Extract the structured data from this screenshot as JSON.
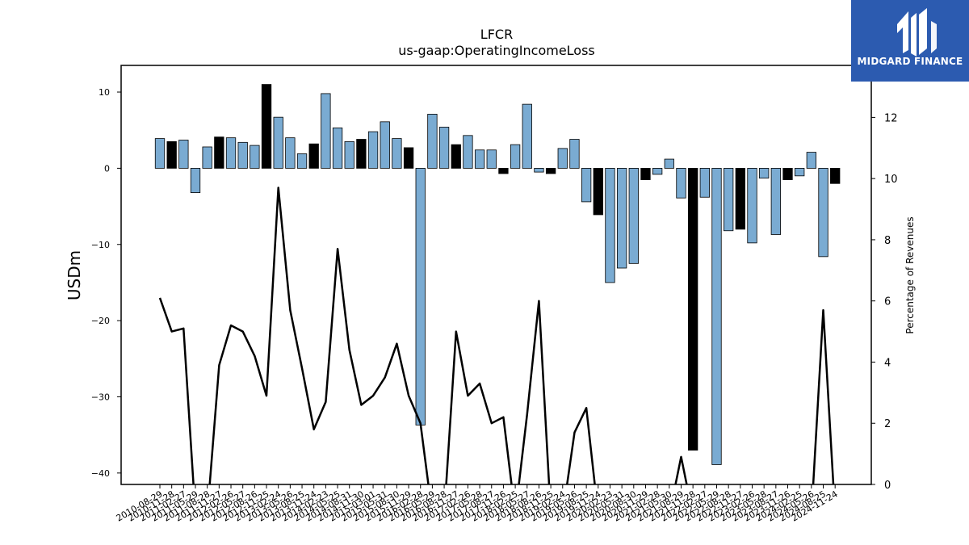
{
  "brand": {
    "name": "MIDGARD FINANCE",
    "bg": "#2c5bb0"
  },
  "chart_data": {
    "type": "bar",
    "title": "LFCR",
    "subtitle": "us-gaap:OperatingIncomeLoss",
    "ylabel": "USDm",
    "y2label": "Percentage of Revenues",
    "ylim": [
      -41.5,
      13.5
    ],
    "y_ticks": [
      10,
      0,
      -10,
      -20,
      -30,
      -40
    ],
    "y2lim": [
      0,
      13.7
    ],
    "y2_ticks": [
      0,
      2,
      4,
      6,
      8,
      10,
      12
    ],
    "colors": {
      "bar_default": "#7aabd2",
      "bar_highlight": "#000000",
      "line": "#000000"
    },
    "categories": [
      "2010-08-29",
      "2010-11-28",
      "2011-02-27",
      "2011-05-29",
      "2011-08-28",
      "2011-11-27",
      "2012-02-26",
      "2012-05-27",
      "2012-08-26",
      "2012-11-25",
      "2013-02-24",
      "2013-05-26",
      "2013-08-25",
      "2013-11-24",
      "2014-02-23",
      "2014-05-25",
      "2014-08-31",
      "2014-11-30",
      "2015-03-01",
      "2015-05-31",
      "2015-08-30",
      "2015-11-29",
      "2016-02-28",
      "2016-05-29",
      "2016-08-28",
      "2016-11-27",
      "2017-02-26",
      "2017-05-28",
      "2017-08-27",
      "2017-11-26",
      "2018-02-25",
      "2018-05-27",
      "2018-08-26",
      "2018-11-25",
      "2019-02-24",
      "2019-05-26",
      "2019-08-25",
      "2019-11-24",
      "2020-02-23",
      "2020-05-31",
      "2020-08-30",
      "2020-11-29",
      "2021-02-28",
      "2021-05-30",
      "2021-08-29",
      "2021-11-28",
      "2022-02-27",
      "2022-05-29",
      "2022-08-28",
      "2022-11-27",
      "2023-02-26",
      "2023-05-28",
      "2023-08-27",
      "2023-11-26",
      "2024-02-25",
      "2024-05-26",
      "2024-08-25",
      "2024-11-24"
    ],
    "values": [
      3.9,
      3.5,
      3.7,
      -3.2,
      2.8,
      4.1,
      4.0,
      3.4,
      3.0,
      11.0,
      6.7,
      4.0,
      1.9,
      3.2,
      9.8,
      5.3,
      3.5,
      3.8,
      4.8,
      6.1,
      3.9,
      2.7,
      -33.7,
      7.1,
      5.4,
      3.1,
      4.3,
      2.4,
      2.4,
      -0.7,
      3.1,
      8.4,
      -0.5,
      -0.7,
      2.6,
      3.8,
      -4.4,
      -6.1,
      -15.0,
      -13.1,
      -12.5,
      -1.5,
      -0.8,
      1.2,
      -3.9,
      -37.0,
      -3.8,
      -38.9,
      -8.2,
      -8.0,
      -9.8,
      -1.3,
      -8.7,
      -1.5,
      -1.0,
      2.1,
      -11.6,
      -2.0
    ],
    "highlight": [
      false,
      true,
      false,
      false,
      false,
      true,
      false,
      false,
      false,
      true,
      false,
      false,
      false,
      true,
      false,
      false,
      false,
      true,
      false,
      false,
      false,
      true,
      false,
      false,
      false,
      true,
      false,
      false,
      false,
      true,
      false,
      false,
      false,
      true,
      false,
      false,
      false,
      true,
      false,
      false,
      false,
      true,
      false,
      false,
      false,
      true,
      false,
      false,
      false,
      true,
      false,
      false,
      false,
      true,
      false,
      false,
      false,
      true
    ],
    "pct_of_revenues": [
      6.1,
      5.0,
      5.1,
      -1.0,
      -1.0,
      3.9,
      5.2,
      5.0,
      4.2,
      2.9,
      9.7,
      5.7,
      3.8,
      1.8,
      2.7,
      7.7,
      4.4,
      2.6,
      2.9,
      3.5,
      4.6,
      2.9,
      2.0,
      -1.0,
      -1.0,
      5.0,
      2.9,
      3.3,
      2.0,
      2.2,
      -1.0,
      2.3,
      6.0,
      -1.0,
      -1.0,
      1.7,
      2.5,
      -1.0,
      -1.0,
      -1.0,
      -1.0,
      -1.0,
      -1.0,
      -1.0,
      0.9,
      -1.0,
      -1.0,
      -1.0,
      -1.0,
      -1.0,
      -1.0,
      -1.0,
      -1.0,
      -1.0,
      -1.0,
      -1.0,
      5.7,
      -1.0
    ]
  }
}
